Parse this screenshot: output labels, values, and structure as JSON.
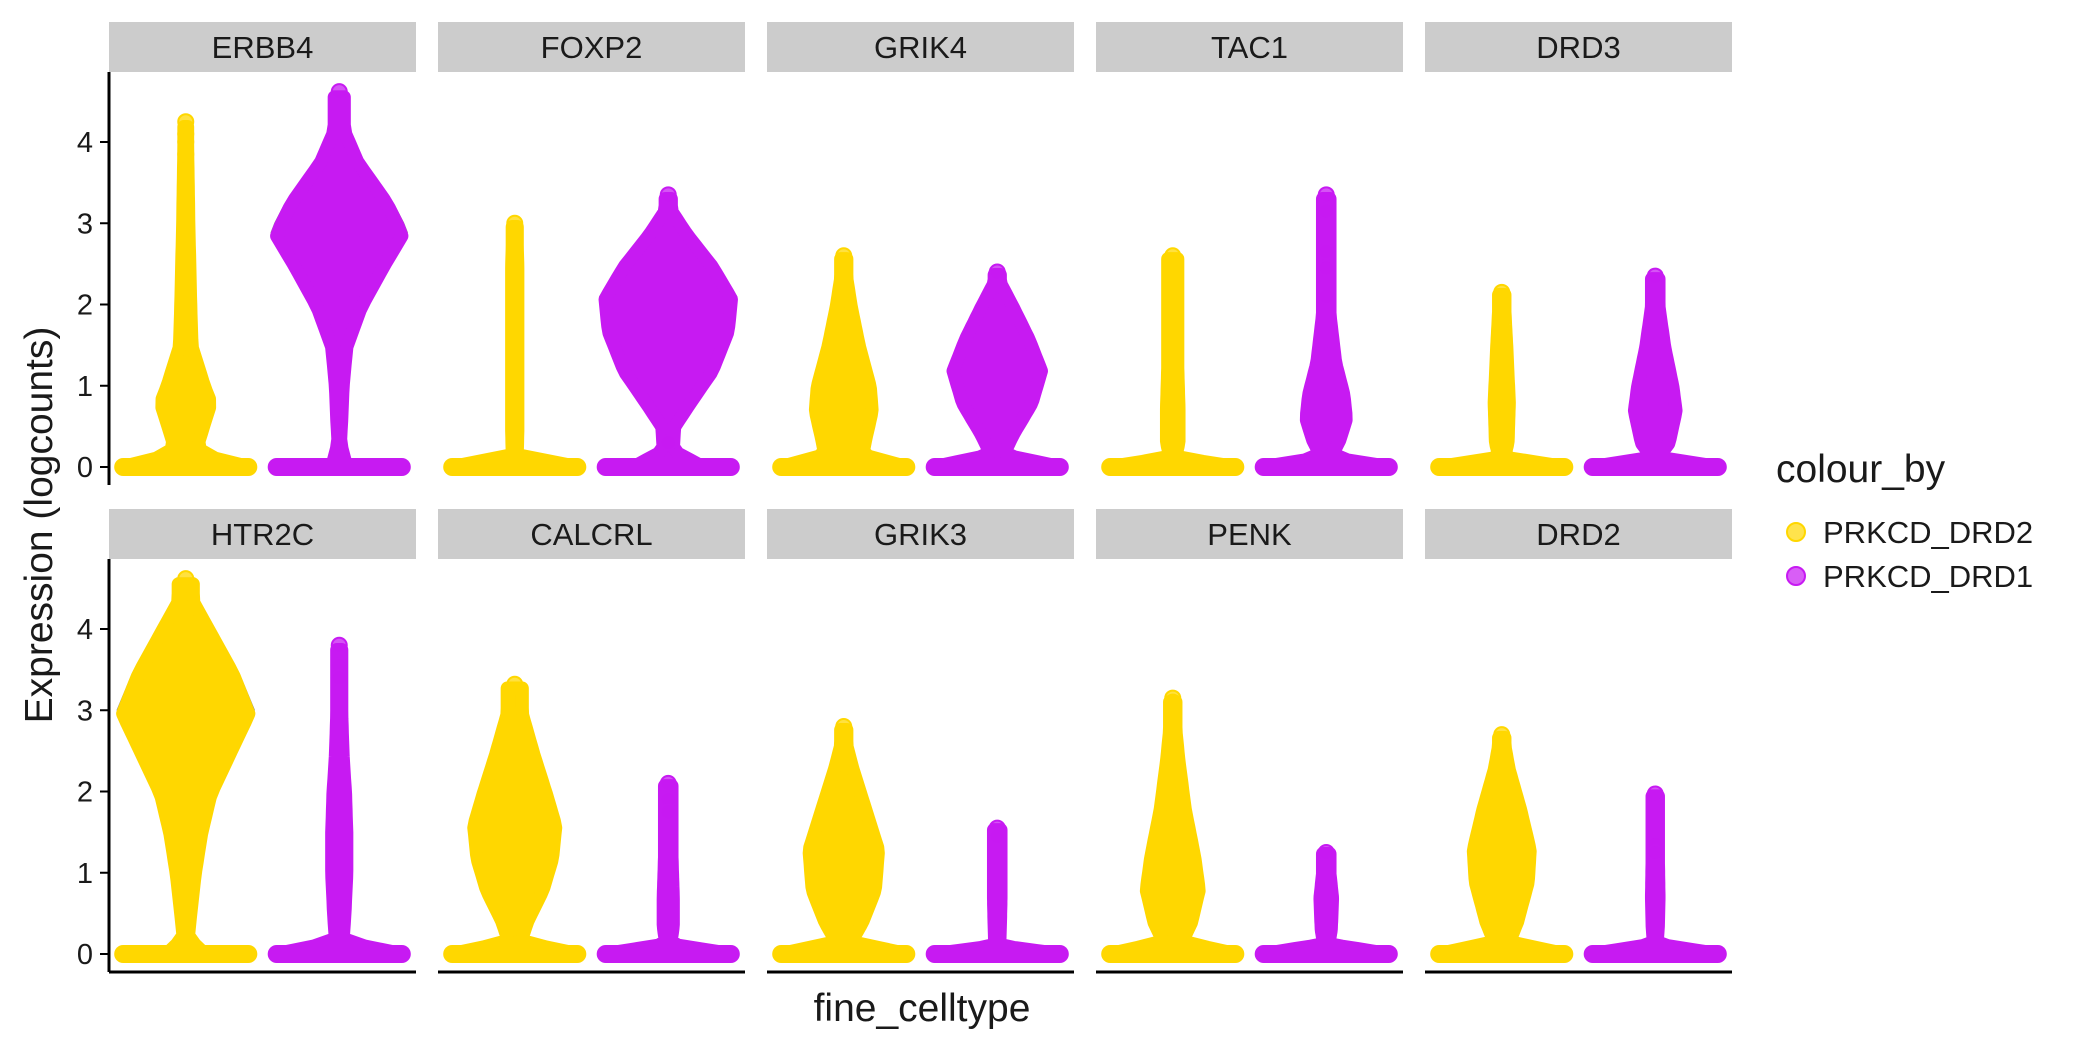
{
  "chart_data": {
    "type": "violin",
    "ylabel": "Expression (logcounts)",
    "xlabel": "fine_celltype",
    "ylim": [
      0,
      4.8
    ],
    "y_ticks": [
      0,
      1,
      2,
      3,
      4
    ],
    "grid": false,
    "legend": {
      "title": "colour_by",
      "position": "right",
      "entries": [
        {
          "label": "PRKCD_DRD2",
          "color": "#FFD700"
        },
        {
          "label": "PRKCD_DRD1",
          "color": "#C71AF2"
        }
      ]
    },
    "series_colors": {
      "PRKCD_DRD2": "#FFD700",
      "PRKCD_DRD1": "#C71AF2"
    },
    "panels": [
      {
        "gene": "ERBB4",
        "groups": [
          {
            "name": "PRKCD_DRD2",
            "max": 4.25,
            "profile": [
              [
                0,
                1.0
              ],
              [
                0.15,
                0.25
              ],
              [
                0.3,
                0.2
              ],
              [
                0.8,
                0.4
              ],
              [
                1.0,
                0.3
              ],
              [
                1.5,
                0.1
              ],
              [
                2.0,
                0.08
              ],
              [
                3.0,
                0.05
              ],
              [
                3.5,
                0.04
              ],
              [
                4.0,
                0.03
              ]
            ],
            "outliers": [
              4.25,
              4.1,
              4.0,
              3.85,
              3.65,
              3.55
            ]
          },
          {
            "name": "PRKCD_DRD1",
            "max": 4.62,
            "profile": [
              [
                0,
                0.12
              ],
              [
                0.3,
                0.02
              ],
              [
                0.6,
                0.04
              ],
              [
                1.0,
                0.06
              ],
              [
                1.5,
                0.12
              ],
              [
                2.0,
                0.35
              ],
              [
                2.5,
                0.7
              ],
              [
                2.9,
                1.0
              ],
              [
                3.3,
                0.75
              ],
              [
                3.8,
                0.3
              ],
              [
                4.2,
                0.08
              ]
            ],
            "outliers": [
              4.62,
              0.55
            ]
          }
        ]
      },
      {
        "gene": "FOXP2",
        "groups": [
          {
            "name": "PRKCD_DRD2",
            "max": 3.0,
            "profile": [
              [
                0,
                1.0
              ],
              [
                0.15,
                0.04
              ],
              [
                0.5,
                0.05
              ],
              [
                1.5,
                0.05
              ],
              [
                2.5,
                0.05
              ],
              [
                2.75,
                0.04
              ]
            ],
            "outliers": [
              3.0
            ]
          },
          {
            "name": "PRKCD_DRD1",
            "max": 3.35,
            "profile": [
              [
                0,
                0.55
              ],
              [
                0.2,
                0.08
              ],
              [
                0.5,
                0.1
              ],
              [
                0.8,
                0.35
              ],
              [
                1.2,
                0.7
              ],
              [
                1.7,
                0.95
              ],
              [
                2.1,
                1.0
              ],
              [
                2.5,
                0.7
              ],
              [
                2.9,
                0.3
              ],
              [
                3.2,
                0.05
              ]
            ],
            "outliers": [
              3.35,
              0.3
            ]
          }
        ]
      },
      {
        "gene": "GRIK4",
        "groups": [
          {
            "name": "PRKCD_DRD2",
            "max": 2.6,
            "profile": [
              [
                0,
                1.0
              ],
              [
                0.15,
                0.3
              ],
              [
                0.35,
                0.35
              ],
              [
                0.7,
                0.45
              ],
              [
                1.0,
                0.42
              ],
              [
                1.5,
                0.25
              ],
              [
                2.0,
                0.12
              ],
              [
                2.35,
                0.05
              ]
            ],
            "outliers": [
              2.6
            ]
          },
          {
            "name": "PRKCD_DRD1",
            "max": 2.4,
            "profile": [
              [
                0,
                1.0
              ],
              [
                0.15,
                0.1
              ],
              [
                0.4,
                0.25
              ],
              [
                0.8,
                0.55
              ],
              [
                1.2,
                0.7
              ],
              [
                1.6,
                0.5
              ],
              [
                2.0,
                0.25
              ],
              [
                2.3,
                0.05
              ]
            ],
            "outliers": [
              2.4
            ]
          }
        ]
      },
      {
        "gene": "TAC1",
        "groups": [
          {
            "name": "PRKCD_DRD2",
            "max": 2.6,
            "profile": [
              [
                0,
                1.0
              ],
              [
                0.12,
                0.04
              ],
              [
                0.3,
                0.1
              ],
              [
                0.7,
                0.1
              ],
              [
                1.25,
                0.08
              ]
            ],
            "outliers": [
              2.6,
              2.1,
              1.85
            ]
          },
          {
            "name": "PRKCD_DRD1",
            "max": 3.35,
            "profile": [
              [
                0,
                1.0
              ],
              [
                0.12,
                0.05
              ],
              [
                0.3,
                0.2
              ],
              [
                0.6,
                0.32
              ],
              [
                0.9,
                0.28
              ],
              [
                1.3,
                0.15
              ],
              [
                1.9,
                0.06
              ]
            ],
            "outliers": [
              3.35,
              3.15,
              2.65,
              2.45,
              2.1
            ]
          }
        ]
      },
      {
        "gene": "DRD3",
        "groups": [
          {
            "name": "PRKCD_DRD2",
            "max": 2.15,
            "profile": [
              [
                0,
                1.0
              ],
              [
                0.12,
                0.04
              ],
              [
                0.3,
                0.1
              ],
              [
                0.8,
                0.12
              ],
              [
                1.5,
                0.08
              ],
              [
                1.95,
                0.05
              ]
            ],
            "outliers": [
              2.15
            ]
          },
          {
            "name": "PRKCD_DRD1",
            "max": 2.35,
            "profile": [
              [
                0,
                1.0
              ],
              [
                0.12,
                0.05
              ],
              [
                0.3,
                0.22
              ],
              [
                0.7,
                0.33
              ],
              [
                1.0,
                0.28
              ],
              [
                1.5,
                0.15
              ],
              [
                2.0,
                0.06
              ]
            ],
            "outliers": [
              2.35
            ]
          }
        ]
      },
      {
        "gene": "HTR2C",
        "groups": [
          {
            "name": "PRKCD_DRD2",
            "max": 4.62,
            "profile": [
              [
                0,
                0.3
              ],
              [
                0.2,
                0.04
              ],
              [
                0.5,
                0.08
              ],
              [
                1.0,
                0.15
              ],
              [
                1.5,
                0.25
              ],
              [
                2.0,
                0.4
              ],
              [
                2.5,
                0.7
              ],
              [
                3.0,
                1.0
              ],
              [
                3.5,
                0.75
              ],
              [
                4.0,
                0.4
              ],
              [
                4.4,
                0.12
              ]
            ],
            "outliers": [
              4.62
            ]
          },
          {
            "name": "PRKCD_DRD1",
            "max": 3.8,
            "profile": [
              [
                0,
                1.0
              ],
              [
                0.15,
                0.06
              ],
              [
                0.5,
                0.09
              ],
              [
                1.0,
                0.12
              ],
              [
                1.5,
                0.12
              ],
              [
                2.0,
                0.1
              ],
              [
                2.5,
                0.06
              ],
              [
                3.0,
                0.04
              ]
            ],
            "outliers": [
              3.8,
              3.55,
              3.4
            ]
          }
        ]
      },
      {
        "gene": "CALCRL",
        "groups": [
          {
            "name": "PRKCD_DRD2",
            "max": 3.32,
            "profile": [
              [
                0,
                1.0
              ],
              [
                0.15,
                0.1
              ],
              [
                0.4,
                0.2
              ],
              [
                0.8,
                0.45
              ],
              [
                1.2,
                0.6
              ],
              [
                1.6,
                0.65
              ],
              [
                2.0,
                0.5
              ],
              [
                2.5,
                0.3
              ],
              [
                3.0,
                0.12
              ]
            ],
            "outliers": [
              3.32
            ]
          },
          {
            "name": "PRKCD_DRD1",
            "max": 2.1,
            "profile": [
              [
                0,
                1.0
              ],
              [
                0.12,
                0.04
              ],
              [
                0.35,
                0.08
              ],
              [
                0.7,
                0.08
              ],
              [
                1.2,
                0.06
              ]
            ],
            "outliers": [
              2.1,
              1.9,
              1.75
            ]
          }
        ]
      },
      {
        "gene": "GRIK3",
        "groups": [
          {
            "name": "PRKCD_DRD2",
            "max": 2.8,
            "profile": [
              [
                0,
                1.0
              ],
              [
                0.15,
                0.12
              ],
              [
                0.4,
                0.3
              ],
              [
                0.8,
                0.5
              ],
              [
                1.3,
                0.55
              ],
              [
                1.8,
                0.35
              ],
              [
                2.3,
                0.15
              ],
              [
                2.6,
                0.05
              ]
            ],
            "outliers": [
              2.8
            ]
          },
          {
            "name": "PRKCD_DRD1",
            "max": 1.55,
            "profile": [
              [
                0,
                1.0
              ],
              [
                0.1,
                0.04
              ],
              [
                0.35,
                0.05
              ],
              [
                0.7,
                0.06
              ],
              [
                1.2,
                0.06
              ]
            ],
            "outliers": [
              1.55,
              1.45
            ]
          }
        ]
      },
      {
        "gene": "PENK",
        "groups": [
          {
            "name": "PRKCD_DRD2",
            "max": 3.15,
            "profile": [
              [
                0,
                1.0
              ],
              [
                0.15,
                0.15
              ],
              [
                0.4,
                0.3
              ],
              [
                0.8,
                0.42
              ],
              [
                1.2,
                0.35
              ],
              [
                1.8,
                0.2
              ],
              [
                2.4,
                0.1
              ],
              [
                2.8,
                0.05
              ]
            ],
            "outliers": [
              3.15,
              3.1
            ]
          },
          {
            "name": "PRKCD_DRD1",
            "max": 1.25,
            "profile": [
              [
                0,
                1.0
              ],
              [
                0.12,
                0.04
              ],
              [
                0.3,
                0.08
              ],
              [
                0.7,
                0.1
              ],
              [
                1.0,
                0.06
              ]
            ],
            "outliers": [
              1.25
            ]
          }
        ]
      },
      {
        "gene": "DRD2",
        "groups": [
          {
            "name": "PRKCD_DRD2",
            "max": 2.7,
            "profile": [
              [
                0,
                1.0
              ],
              [
                0.15,
                0.12
              ],
              [
                0.4,
                0.25
              ],
              [
                0.9,
                0.42
              ],
              [
                1.3,
                0.45
              ],
              [
                1.8,
                0.3
              ],
              [
                2.3,
                0.12
              ],
              [
                2.6,
                0.05
              ]
            ],
            "outliers": [
              2.7
            ]
          },
          {
            "name": "PRKCD_DRD1",
            "max": 1.97,
            "profile": [
              [
                0,
                1.0
              ],
              [
                0.12,
                0.03
              ],
              [
                0.35,
                0.05
              ],
              [
                0.7,
                0.06
              ],
              [
                1.2,
                0.05
              ]
            ],
            "outliers": [
              1.97,
              1.35,
              1.25
            ]
          }
        ]
      }
    ]
  }
}
